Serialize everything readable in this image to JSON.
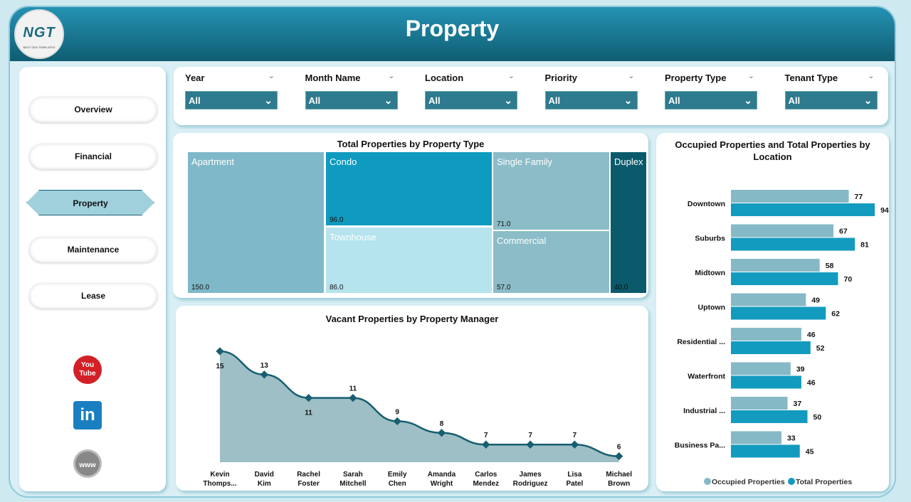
{
  "header": {
    "title": "Property",
    "logo_text": "NGT",
    "logo_sub": "NEXT GEN TEMPLATES"
  },
  "nav": [
    {
      "label": "Overview"
    },
    {
      "label": "Financial"
    },
    {
      "label": "Property",
      "active": true
    },
    {
      "label": "Maintenance"
    },
    {
      "label": "Lease"
    }
  ],
  "social": [
    {
      "icon": "youtube-icon",
      "label": "You Tube"
    },
    {
      "icon": "linkedin-icon",
      "label": "in"
    },
    {
      "icon": "globe-icon",
      "label": "www"
    }
  ],
  "filters": [
    {
      "label": "Year",
      "value": "All"
    },
    {
      "label": "Month Name",
      "value": "All"
    },
    {
      "label": "Location",
      "value": "All"
    },
    {
      "label": "Priority",
      "value": "All"
    },
    {
      "label": "Property Type",
      "value": "All"
    },
    {
      "label": "Tenant Type",
      "value": "All"
    }
  ],
  "treemap": {
    "title": "Total Properties by Property Type",
    "items": [
      {
        "name": "Apartment",
        "value": "150.0",
        "color": "#7fb9c9"
      },
      {
        "name": "Condo",
        "value": "96.0",
        "color": "#0f9bbf"
      },
      {
        "name": "Townhouse",
        "value": "86.0",
        "color": "#b5e3ee"
      },
      {
        "name": "Single Family",
        "value": "71.0",
        "color": "#8bbcc8"
      },
      {
        "name": "Commercial",
        "value": "57.0",
        "color": "#8bbcc8"
      },
      {
        "name": "Duplex",
        "value": "40.0",
        "color": "#0b5a6b"
      }
    ]
  },
  "chart_data": [
    {
      "type": "area",
      "title": "Vacant Properties by Property Manager",
      "categories": [
        "Kevin Thomps...",
        "David Kim",
        "Rachel Foster",
        "Sarah Mitchell",
        "Emily Chen",
        "Amanda Wright",
        "Carlos Mendez",
        "James Rodriguez",
        "Lisa Patel",
        "Michael Brown"
      ],
      "values": [
        15,
        13,
        11,
        11,
        9,
        8,
        7,
        7,
        7,
        6
      ],
      "colors": {
        "line": "#175e70",
        "fill": "#9dbfc5"
      }
    },
    {
      "type": "bar",
      "orientation": "horizontal",
      "title": "Occupied Properties and Total Properties by Location",
      "categories": [
        "Downtown",
        "Suburbs",
        "Midtown",
        "Uptown",
        "Residential ...",
        "Waterfront",
        "Industrial ...",
        "Business Pa..."
      ],
      "series": [
        {
          "name": "Occupied Properties",
          "values": [
            77,
            67,
            58,
            49,
            46,
            39,
            37,
            33
          ],
          "color": "#86b9c6"
        },
        {
          "name": "Total Properties",
          "values": [
            94,
            81,
            70,
            62,
            52,
            46,
            50,
            45
          ],
          "color": "#139bbf"
        }
      ],
      "legend": "bottom"
    }
  ]
}
